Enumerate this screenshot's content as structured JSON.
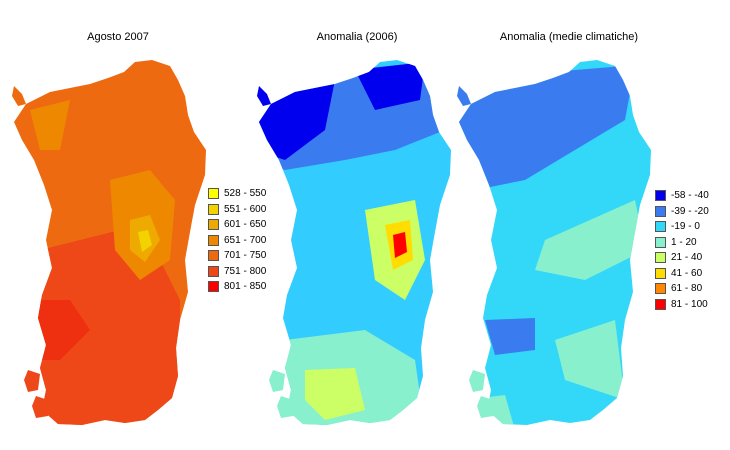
{
  "maps": [
    {
      "title": "Agosto 2007",
      "base_color": "#ee6a10",
      "legend": [
        {
          "label": "528 - 550",
          "color": "#ffff00"
        },
        {
          "label": "551 - 600",
          "color": "#f2d300"
        },
        {
          "label": "601 - 650",
          "color": "#eeaa00"
        },
        {
          "label": "651 - 700",
          "color": "#ee8800"
        },
        {
          "label": "701 - 750",
          "color": "#ee6a10"
        },
        {
          "label": "751 - 800",
          "color": "#ee4818"
        },
        {
          "label": "801 - 850",
          "color": "#ff0000"
        }
      ]
    },
    {
      "title": "Anomalia (2006)",
      "base_color": "#33ccff"
    },
    {
      "title": "Anomalia (medie climatiche)",
      "base_color": "#33d8f8",
      "legend": [
        {
          "label": "-58 - -40",
          "color": "#0000ee"
        },
        {
          "label": "-39 - -20",
          "color": "#3a7cf0"
        },
        {
          "label": "-19 - 0",
          "color": "#33d8f8"
        },
        {
          "label": "1 - 20",
          "color": "#88f0cc"
        },
        {
          "label": "21 - 40",
          "color": "#ccff66"
        },
        {
          "label": "41 - 60",
          "color": "#ffdd00"
        },
        {
          "label": "61 - 80",
          "color": "#ff8800"
        },
        {
          "label": "81 - 100",
          "color": "#ff0000"
        }
      ]
    }
  ]
}
